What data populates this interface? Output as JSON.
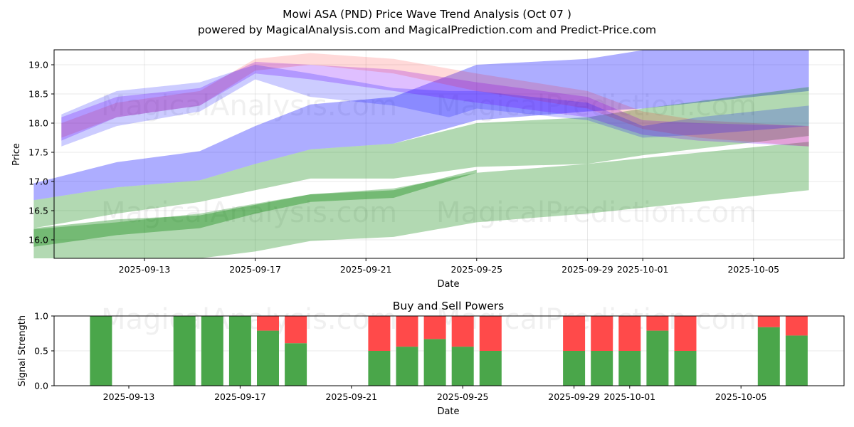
{
  "chart_data": [
    {
      "type": "area",
      "title": "Mowi ASA (PND) Price Wave Trend Analysis (Oct 07 )",
      "subtitle": "powered by MagicalAnalysis.com and MagicalPrediction.com and Predict-Price.com",
      "xlabel": "Date",
      "ylabel": "Price",
      "xlim": [
        "2025-09-09",
        "2025-10-08"
      ],
      "ylim": [
        15.7,
        19.25
      ],
      "x_ticks": [
        "2025-09-13",
        "2025-09-17",
        "2025-09-21",
        "2025-09-25",
        "2025-09-29",
        "2025-10-01",
        "2025-10-05"
      ],
      "y_ticks": [
        "16.0",
        "16.5",
        "17.0",
        "17.5",
        "18.0",
        "18.5",
        "19.0"
      ],
      "grid": true,
      "watermarks": [
        "MagicalAnalysis.com",
        "MagicalPrediction.com"
      ],
      "series": [
        {
          "name": "upper-blue-band",
          "color": "#0000ff",
          "opacity": 0.32,
          "x": [
            "2025-09-09",
            "2025-09-12",
            "2025-09-15",
            "2025-09-17",
            "2025-09-19",
            "2025-09-22",
            "2025-09-25",
            "2025-09-29",
            "2025-10-01",
            "2025-10-07"
          ],
          "upper": [
            16.97,
            17.33,
            17.52,
            17.95,
            18.32,
            18.45,
            19.0,
            19.1,
            19.25,
            19.28
          ],
          "lower": [
            16.68,
            16.9,
            17.02,
            17.3,
            17.55,
            17.65,
            18.05,
            18.2,
            18.25,
            18.55
          ]
        },
        {
          "name": "upper-green-band",
          "color": "#008000",
          "opacity": 0.3,
          "x": [
            "2025-09-09",
            "2025-09-12",
            "2025-09-15",
            "2025-09-17",
            "2025-09-19",
            "2025-09-22",
            "2025-09-25",
            "2025-09-29",
            "2025-10-01",
            "2025-10-07"
          ],
          "upper": [
            16.68,
            16.9,
            17.02,
            17.3,
            17.55,
            17.65,
            18.0,
            18.1,
            18.25,
            18.62
          ],
          "lower": [
            16.2,
            16.45,
            16.65,
            16.85,
            17.05,
            17.05,
            17.25,
            17.3,
            17.45,
            17.78
          ]
        },
        {
          "name": "lower-green-band",
          "color": "#008000",
          "opacity": 0.3,
          "x": [
            "2025-09-09",
            "2025-09-12",
            "2025-09-15",
            "2025-09-17",
            "2025-09-19",
            "2025-09-22",
            "2025-09-25",
            "2025-09-29",
            "2025-10-01",
            "2025-10-07"
          ],
          "upper": [
            16.18,
            16.3,
            16.45,
            16.62,
            16.78,
            16.88,
            17.15,
            17.3,
            17.4,
            17.68
          ],
          "lower": [
            15.6,
            15.5,
            15.6,
            15.8,
            15.98,
            16.05,
            16.3,
            16.45,
            16.55,
            16.85
          ]
        },
        {
          "name": "lower-green-core",
          "color": "#008000",
          "opacity": 0.35,
          "x": [
            "2025-09-09",
            "2025-09-12",
            "2025-09-15",
            "2025-09-17",
            "2025-09-19",
            "2025-09-22",
            "2025-09-25"
          ],
          "upper": [
            16.2,
            16.35,
            16.42,
            16.6,
            16.78,
            16.85,
            17.2
          ],
          "lower": [
            15.88,
            16.08,
            16.2,
            16.45,
            16.65,
            16.72,
            17.15
          ]
        },
        {
          "name": "purple-wave-1",
          "color": "#8000ff",
          "opacity": 0.25,
          "x": [
            "2025-09-10",
            "2025-09-12",
            "2025-09-15",
            "2025-09-17",
            "2025-09-19",
            "2025-09-22",
            "2025-09-25",
            "2025-09-29",
            "2025-10-01",
            "2025-10-03",
            "2025-10-07"
          ],
          "upper": [
            18.1,
            18.45,
            18.6,
            19.05,
            19.0,
            18.92,
            18.7,
            18.45,
            18.05,
            18.0,
            17.95
          ],
          "lower": [
            17.7,
            18.1,
            18.3,
            18.85,
            18.75,
            18.55,
            18.35,
            18.1,
            17.8,
            17.7,
            17.6
          ]
        },
        {
          "name": "red-wave-1",
          "color": "#ff0000",
          "opacity": 0.15,
          "x": [
            "2025-09-10",
            "2025-09-12",
            "2025-09-15",
            "2025-09-17",
            "2025-09-19",
            "2025-09-22",
            "2025-09-25",
            "2025-09-29",
            "2025-10-01",
            "2025-10-03",
            "2025-10-07"
          ],
          "upper": [
            18.0,
            18.35,
            18.55,
            19.1,
            19.2,
            19.1,
            18.85,
            18.55,
            18.2,
            18.05,
            17.95
          ],
          "lower": [
            17.75,
            18.1,
            18.3,
            18.9,
            19.0,
            18.85,
            18.55,
            18.25,
            17.9,
            17.75,
            17.6
          ]
        },
        {
          "name": "blue-wave-1",
          "color": "#0000ff",
          "opacity": 0.2,
          "x": [
            "2025-09-10",
            "2025-09-12",
            "2025-09-15",
            "2025-09-17",
            "2025-09-19",
            "2025-09-22",
            "2025-09-24",
            "2025-09-25",
            "2025-09-29",
            "2025-10-01",
            "2025-10-03",
            "2025-10-07"
          ],
          "upper": [
            18.15,
            18.55,
            18.7,
            19.0,
            18.85,
            18.6,
            18.55,
            18.55,
            18.35,
            17.95,
            18.1,
            18.3
          ],
          "lower": [
            17.6,
            17.95,
            18.2,
            18.75,
            18.45,
            18.3,
            18.1,
            18.25,
            18.05,
            17.75,
            17.8,
            17.95
          ]
        }
      ]
    },
    {
      "type": "bar",
      "title": "Buy and Sell Powers",
      "xlabel": "Date",
      "ylabel": "Signal Strength",
      "ylim": [
        0.0,
        1.0
      ],
      "y_ticks": [
        "0.0",
        "0.5",
        "1.0"
      ],
      "x_ticks": [
        "2025-09-13",
        "2025-09-17",
        "2025-09-21",
        "2025-09-25",
        "2025-09-29",
        "2025-10-01",
        "2025-10-05"
      ],
      "grid": true,
      "categories": [
        "2025-09-12",
        "2025-09-15",
        "2025-09-16",
        "2025-09-17",
        "2025-09-18",
        "2025-09-19",
        "2025-09-22",
        "2025-09-23",
        "2025-09-24",
        "2025-09-25",
        "2025-09-26",
        "2025-09-29",
        "2025-09-30",
        "2025-10-01",
        "2025-10-02",
        "2025-10-03",
        "2025-10-06",
        "2025-10-07"
      ],
      "series": [
        {
          "name": "Buy",
          "color": "#4aa64a",
          "values": [
            1.0,
            1.0,
            1.0,
            1.0,
            0.79,
            0.61,
            0.5,
            0.56,
            0.67,
            0.56,
            0.5,
            0.5,
            0.5,
            0.5,
            0.79,
            0.5,
            0.84,
            0.72
          ]
        },
        {
          "name": "Sell",
          "color": "#ff4a4a",
          "values": [
            0.0,
            0.0,
            0.0,
            0.0,
            0.21,
            0.39,
            0.5,
            0.44,
            0.33,
            0.44,
            0.5,
            0.5,
            0.5,
            0.5,
            0.21,
            0.5,
            0.16,
            0.28
          ]
        }
      ]
    }
  ]
}
